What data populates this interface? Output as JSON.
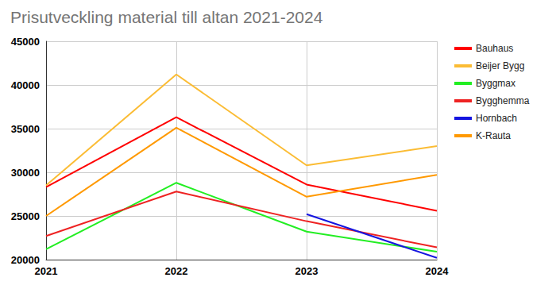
{
  "chart_data": {
    "type": "line",
    "title": "Prisutveckling material till altan 2021-2024",
    "categories": [
      "2021",
      "2022",
      "2023",
      "2024"
    ],
    "series": [
      {
        "name": "Bauhaus",
        "color": "#ff0000",
        "values": [
          28300,
          36300,
          28600,
          25600
        ]
      },
      {
        "name": "Beijer Bygg",
        "color": "#fbbc34",
        "values": [
          28500,
          41200,
          30800,
          33000
        ]
      },
      {
        "name": "Byggmax",
        "color": "#22ee22",
        "values": [
          21200,
          28800,
          23200,
          20900
        ]
      },
      {
        "name": "Bygghemma",
        "color": "#ee2222",
        "values": [
          22700,
          27800,
          24400,
          21400
        ]
      },
      {
        "name": "Hornbach",
        "color": "#1515e0",
        "values": [
          null,
          null,
          25200,
          20200
        ]
      },
      {
        "name": "K-Rauta",
        "color": "#ff9900",
        "values": [
          25000,
          35100,
          27200,
          29700
        ]
      }
    ],
    "ylim": [
      20000,
      45000
    ],
    "yticks": [
      20000,
      25000,
      30000,
      35000,
      40000,
      45000
    ],
    "grid": true,
    "legend": "right"
  }
}
